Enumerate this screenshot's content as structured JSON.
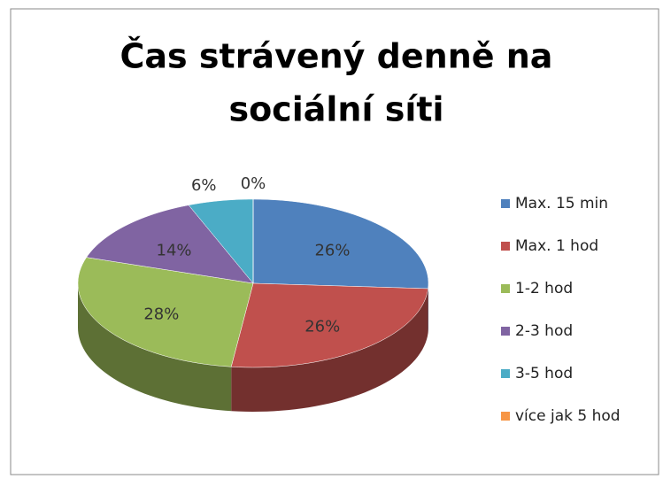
{
  "chart_data": {
    "type": "pie3d",
    "title": [
      "Čas strávený denně na",
      "sociální síti"
    ],
    "categories": [
      "Max. 15 min",
      "Max. 1 hod",
      "1-2 hod",
      "2-3 hod",
      "3-5 hod",
      "více jak 5 hod"
    ],
    "values": [
      26,
      26,
      28,
      14,
      6,
      0
    ],
    "value_labels": [
      "26%",
      "26%",
      "28%",
      "14%",
      "6%",
      "0%"
    ],
    "colors": [
      "#4f81bd",
      "#c0504d",
      "#9bbb59",
      "#8064a2",
      "#4bacc6",
      "#f79646"
    ],
    "legend": "right"
  }
}
